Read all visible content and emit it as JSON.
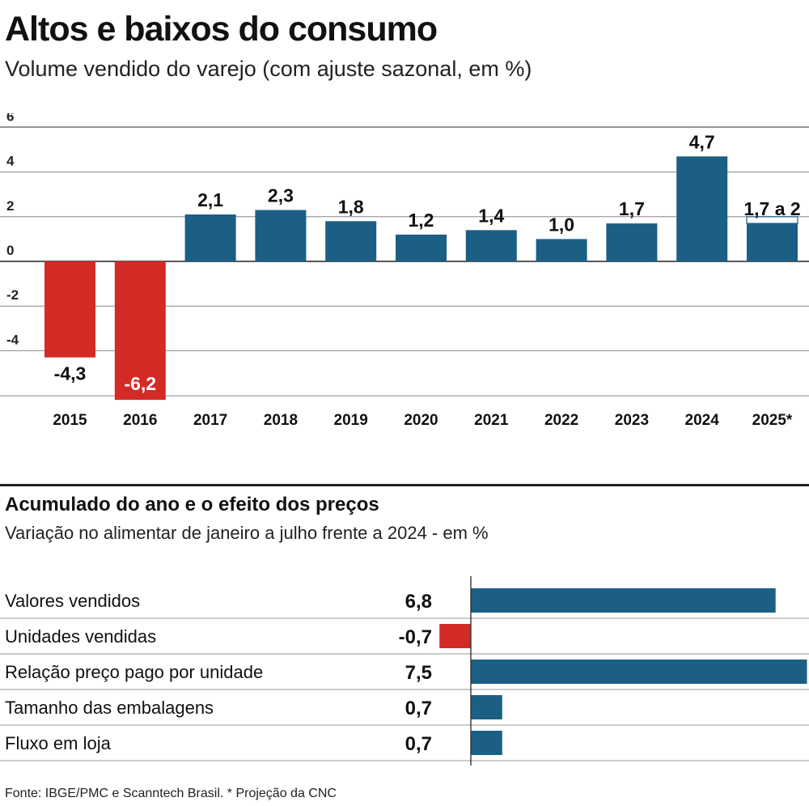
{
  "header": {
    "title": "Altos e baixos do consumo",
    "subtitle": "Volume vendido do varejo (com ajuste sazonal, em %)"
  },
  "chart_data": [
    {
      "type": "bar",
      "title": "Altos e baixos do consumo",
      "subtitle": "Volume vendido do varejo (com ajuste sazonal, em %)",
      "categories": [
        "2015",
        "2016",
        "2017",
        "2018",
        "2019",
        "2020",
        "2021",
        "2022",
        "2023",
        "2024",
        "2025*"
      ],
      "values": [
        -4.3,
        -6.2,
        2.1,
        2.3,
        1.8,
        1.2,
        1.4,
        1.0,
        1.7,
        4.7,
        1.7
      ],
      "value_labels": [
        "-4,3",
        "-6,2",
        "2,1",
        "2,3",
        "1,8",
        "1,2",
        "1,4",
        "1,0",
        "1,7",
        "4,7",
        "1,7 a 2"
      ],
      "projection_range": {
        "category": "2025*",
        "low": 1.7,
        "high": 2.0
      },
      "yticks": [
        -4,
        -2,
        0,
        2,
        4,
        6
      ],
      "ytick_labels": [
        "-4",
        "-2",
        "0",
        "2",
        "4",
        "6"
      ],
      "ylim": [
        -6.2,
        6.0
      ],
      "grid": true,
      "colors": {
        "positive": "#1b5f85",
        "negative": "#d42a25"
      }
    },
    {
      "type": "bar",
      "orientation": "horizontal",
      "title": "Acumulado do ano e o efeito dos preços",
      "subtitle": "Variação no alimentar de janeiro a julho frente a 2024 - em %",
      "categories": [
        "Valores vendidos",
        "Unidades vendidas",
        "Relação preço pago por unidade",
        "Tamanho das embalagens",
        "Fluxo em loja"
      ],
      "values": [
        6.8,
        -0.7,
        7.5,
        0.7,
        0.7
      ],
      "value_labels": [
        "6,8",
        "-0,7",
        "7,5",
        "0,7",
        "0,7"
      ],
      "colors": {
        "positive": "#1b5f85",
        "negative": "#d42a25"
      }
    }
  ],
  "footer": {
    "source": "Fonte: IBGE/PMC e Scanntech Brasil. * Projeção da CNC"
  }
}
